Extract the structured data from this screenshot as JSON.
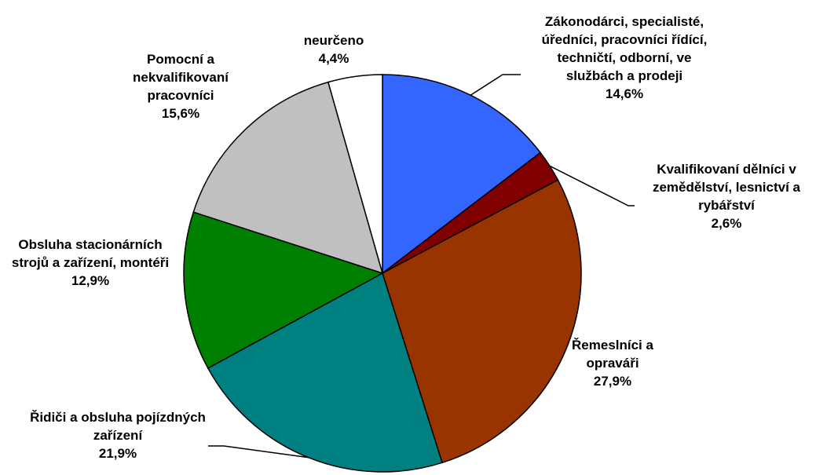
{
  "chart_data": {
    "type": "pie",
    "categories": [
      "Zákonodárci, specialisté, úředníci, pracovníci řídící, techničtí, odborní, ve službách a prodeji",
      "Kvalifikovaní dělníci v zemědělství, lesnictví a rybářství",
      "Řemeslníci a opraváři",
      "Řidiči a obsluha pojízdných zařízení",
      "Obsluha stacionárních strojů a zařízení, montéři",
      "Pomocní a nekvalifikovaní pracovníci",
      "neurčeno"
    ],
    "values": [
      14.6,
      2.6,
      27.9,
      21.9,
      12.9,
      15.6,
      4.4
    ],
    "value_labels": [
      "14,6%",
      "2,6%",
      "27,9%",
      "21,9%",
      "12,9%",
      "15,6%",
      "4,4%"
    ],
    "colors": [
      "#3366ff",
      "#800000",
      "#993300",
      "#008080",
      "#008000",
      "#c0c0c0",
      "#ffffff"
    ]
  }
}
